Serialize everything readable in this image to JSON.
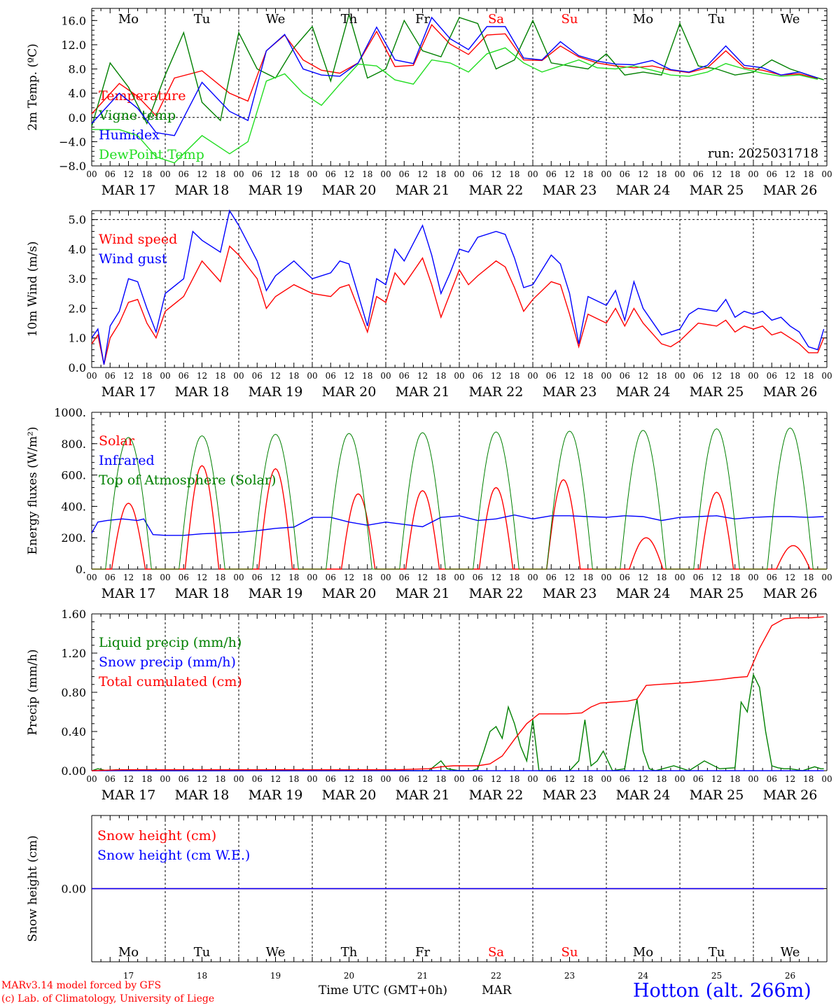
{
  "days": [
    "Mo",
    "Tu",
    "We",
    "Th",
    "Fr",
    "Sa",
    "Su",
    "Mo",
    "Tu",
    "We"
  ],
  "weekend_flags": [
    false,
    false,
    false,
    false,
    false,
    true,
    true,
    false,
    false,
    false
  ],
  "date_labels": [
    "MAR 17",
    "MAR 18",
    "MAR 19",
    "MAR 20",
    "MAR 21",
    "MAR 22",
    "MAR 23",
    "MAR 24",
    "MAR 25",
    "MAR 26"
  ],
  "day_numbers": [
    "17",
    "18",
    "19",
    "20",
    "21",
    "22",
    "23",
    "24",
    "25",
    "26"
  ],
  "hour_ticks": [
    "00",
    "06",
    "12",
    "18"
  ],
  "final_tick": "00",
  "colors": {
    "red": "#ff0000",
    "green": "#008000",
    "blue": "#0000ff",
    "lightgreen": "#22dd22",
    "black": "#000000"
  },
  "chart_data": [
    {
      "type": "line",
      "ylabel": "2m Temp. (ºC)",
      "ylim": [
        -8,
        18
      ],
      "yticks": [
        "16.0",
        "12.0",
        "8.0",
        "4.0",
        "0.0",
        "−4.0",
        "−8.0"
      ],
      "ytick_values": [
        16,
        12,
        8,
        4,
        0,
        -4,
        -8
      ],
      "dashed_y": 0,
      "annotation": "run: 2025031718",
      "series": [
        {
          "name": "Temperature",
          "color": "red",
          "x": [
            0,
            9,
            15,
            21,
            27,
            36,
            45,
            51,
            57,
            63,
            69,
            75,
            81,
            87,
            93,
            99,
            105,
            111,
            117,
            123,
            129,
            135,
            141,
            147,
            153,
            159,
            165,
            171,
            177,
            183,
            189,
            195,
            201,
            207,
            213,
            219,
            225,
            231,
            237
          ],
          "y": [
            0.6,
            5.6,
            3.5,
            0.3,
            6.5,
            7.7,
            4.0,
            2.7,
            11.0,
            13.6,
            9.5,
            7.8,
            7.3,
            9.0,
            14.2,
            8.4,
            8.6,
            15.3,
            12.1,
            10.4,
            13.6,
            13.8,
            9.5,
            9.4,
            11.8,
            10.0,
            9.0,
            8.5,
            8.2,
            8.5,
            7.8,
            7.4,
            8.2,
            11.0,
            8.2,
            7.8,
            7.0,
            7.2,
            6.4
          ]
        },
        {
          "name": "Vigne temp",
          "color": "green",
          "x": [
            0,
            6,
            12,
            18,
            24,
            30,
            36,
            42,
            48,
            54,
            60,
            66,
            72,
            78,
            84,
            90,
            96,
            102,
            108,
            114,
            120,
            126,
            132,
            138,
            144,
            150,
            156,
            162,
            168,
            174,
            180,
            186,
            192,
            198,
            204,
            210,
            216,
            222,
            228,
            234,
            239
          ],
          "y": [
            -1.5,
            9.0,
            5.0,
            -1.0,
            7.0,
            14.0,
            2.5,
            -0.5,
            14.0,
            8.0,
            6.5,
            11.5,
            15.0,
            6.0,
            17.0,
            6.5,
            8.0,
            16.0,
            11.0,
            10.0,
            16.5,
            15.5,
            8.0,
            9.5,
            16.0,
            9.0,
            8.5,
            8.0,
            10.5,
            7.0,
            7.5,
            7.0,
            15.5,
            8.5,
            8.0,
            7.0,
            7.5,
            9.5,
            8.0,
            7.0,
            6.2
          ]
        },
        {
          "name": "Humidex",
          "color": "blue",
          "x": [
            0,
            9,
            15,
            21,
            27,
            36,
            45,
            51,
            57,
            63,
            69,
            75,
            81,
            87,
            93,
            99,
            105,
            111,
            117,
            123,
            129,
            135,
            141,
            147,
            153,
            159,
            165,
            171,
            177,
            183,
            189,
            195,
            201,
            207,
            213,
            219,
            225,
            231,
            237
          ],
          "y": [
            -1.0,
            4.0,
            1.5,
            -2.5,
            -3.0,
            5.8,
            1.0,
            -0.5,
            11.0,
            13.7,
            8.0,
            7.0,
            6.8,
            9.0,
            14.9,
            9.5,
            8.9,
            16.5,
            13.0,
            11.2,
            15.0,
            15.0,
            9.8,
            9.5,
            12.5,
            10.2,
            9.3,
            8.8,
            8.7,
            9.4,
            7.9,
            7.5,
            8.6,
            11.8,
            8.6,
            8.2,
            7.0,
            7.5,
            6.5
          ]
        },
        {
          "name": "DewPoint Temp",
          "color": "lightgreen",
          "x": [
            0,
            9,
            15,
            21,
            27,
            36,
            45,
            51,
            57,
            63,
            69,
            75,
            81,
            87,
            93,
            99,
            105,
            111,
            117,
            123,
            129,
            135,
            141,
            147,
            153,
            159,
            165,
            171,
            177,
            183,
            189,
            195,
            201,
            207,
            213,
            219,
            225,
            231,
            237
          ],
          "y": [
            -2.0,
            -2.0,
            -3.0,
            -6.5,
            -7.5,
            -3.0,
            -6.0,
            -4.0,
            6.0,
            7.2,
            4.0,
            2.0,
            5.5,
            8.8,
            8.5,
            6.2,
            5.5,
            9.5,
            9.0,
            7.5,
            10.5,
            11.5,
            9.0,
            7.5,
            8.5,
            9.5,
            8.2,
            8.0,
            8.5,
            7.8,
            7.0,
            6.8,
            7.5,
            8.9,
            8.0,
            7.3,
            6.8,
            7.0,
            6.3
          ]
        }
      ]
    },
    {
      "type": "line",
      "ylabel": "10m Wind (m/s)",
      "ylim": [
        0,
        5.3
      ],
      "yticks": [
        "5.0",
        "4.0",
        "3.0",
        "2.0",
        "1.0",
        "0.0"
      ],
      "ytick_values": [
        5,
        4,
        3,
        2,
        1,
        0
      ],
      "dashed_y": 5,
      "series": [
        {
          "name": "Wind speed",
          "color": "red",
          "x": [
            0,
            2,
            4,
            6,
            9,
            12,
            15,
            18,
            21,
            24,
            30,
            33,
            36,
            42,
            45,
            48,
            54,
            57,
            60,
            66,
            72,
            78,
            81,
            84,
            90,
            93,
            96,
            99,
            102,
            108,
            111,
            114,
            117,
            120,
            123,
            126,
            132,
            135,
            138,
            141,
            144,
            150,
            153,
            156,
            159,
            162,
            168,
            171,
            174,
            177,
            180,
            186,
            189,
            192,
            195,
            198,
            204,
            207,
            210,
            213,
            216,
            219,
            222,
            225,
            228,
            231,
            234,
            237,
            239
          ],
          "y": [
            0.8,
            1.1,
            0.1,
            1.0,
            1.5,
            2.2,
            2.3,
            1.5,
            1.0,
            1.9,
            2.4,
            3.0,
            3.6,
            2.9,
            4.1,
            3.8,
            3.0,
            2.0,
            2.4,
            2.8,
            2.5,
            2.4,
            2.7,
            2.8,
            1.2,
            2.4,
            2.2,
            3.2,
            2.8,
            3.7,
            2.8,
            1.7,
            2.5,
            3.3,
            2.8,
            3.1,
            3.6,
            3.4,
            2.7,
            1.9,
            2.3,
            2.9,
            2.8,
            1.8,
            0.7,
            1.8,
            1.5,
            2.0,
            1.4,
            2.0,
            1.5,
            0.8,
            0.7,
            0.9,
            1.2,
            1.5,
            1.4,
            1.6,
            1.2,
            1.4,
            1.3,
            1.4,
            1.1,
            1.2,
            1.0,
            0.8,
            0.5,
            0.5,
            1.0
          ]
        },
        {
          "name": "Wind gust",
          "color": "blue",
          "x": [
            0,
            2,
            4,
            6,
            9,
            12,
            15,
            18,
            21,
            24,
            30,
            33,
            36,
            42,
            45,
            48,
            54,
            57,
            60,
            66,
            72,
            78,
            81,
            84,
            90,
            93,
            96,
            99,
            102,
            108,
            111,
            114,
            117,
            120,
            123,
            126,
            132,
            135,
            138,
            141,
            144,
            150,
            153,
            156,
            159,
            162,
            168,
            171,
            174,
            177,
            180,
            186,
            189,
            192,
            195,
            198,
            204,
            207,
            210,
            213,
            216,
            219,
            222,
            225,
            228,
            231,
            234,
            237,
            239
          ],
          "y": [
            1.0,
            1.3,
            0.1,
            1.4,
            1.9,
            3.0,
            2.9,
            2.0,
            1.2,
            2.5,
            3.0,
            4.6,
            4.3,
            3.9,
            5.3,
            4.8,
            3.6,
            2.6,
            3.1,
            3.6,
            3.0,
            3.2,
            3.6,
            3.5,
            1.4,
            3.0,
            2.8,
            4.0,
            3.6,
            4.8,
            3.8,
            2.5,
            3.2,
            4.0,
            3.9,
            4.4,
            4.6,
            4.5,
            3.7,
            2.7,
            2.8,
            3.8,
            3.5,
            2.5,
            0.8,
            2.4,
            2.1,
            2.6,
            1.6,
            2.9,
            2.0,
            1.1,
            1.2,
            1.3,
            1.8,
            2.0,
            1.9,
            2.3,
            1.7,
            1.9,
            1.8,
            1.9,
            1.6,
            1.7,
            1.4,
            1.2,
            0.7,
            0.6,
            1.3
          ]
        }
      ]
    },
    {
      "type": "line",
      "ylabel": "Energy fluxes (W/m²)",
      "ylim": [
        0,
        1000
      ],
      "yticks": [
        "1000.",
        "800.",
        "600.",
        "400.",
        "200.",
        "0."
      ],
      "ytick_values": [
        1000,
        800,
        600,
        400,
        200,
        0
      ],
      "series": [
        {
          "name": "Solar",
          "color": "red",
          "daily_peak_hour": [
            12,
            12,
            12,
            15,
            12,
            12,
            10,
            13,
            12,
            13
          ],
          "daily_peak": [
            420,
            660,
            640,
            480,
            500,
            520,
            570,
            200,
            490,
            150
          ]
        },
        {
          "name": "Infrared",
          "color": "blue",
          "x": [
            0,
            2,
            5,
            10,
            15,
            17,
            20,
            24,
            30,
            36,
            42,
            48,
            54,
            60,
            66,
            72,
            78,
            84,
            90,
            96,
            102,
            108,
            114,
            120,
            126,
            132,
            138,
            144,
            150,
            156,
            162,
            168,
            174,
            180,
            186,
            192,
            198,
            204,
            210,
            216,
            222,
            228,
            234,
            239
          ],
          "y": [
            230,
            300,
            310,
            320,
            310,
            320,
            220,
            215,
            215,
            225,
            230,
            235,
            245,
            260,
            268,
            330,
            330,
            300,
            280,
            300,
            285,
            270,
            330,
            340,
            310,
            320,
            345,
            320,
            340,
            340,
            335,
            330,
            340,
            335,
            310,
            330,
            335,
            340,
            320,
            330,
            335,
            335,
            330,
            335
          ]
        },
        {
          "name": "Top of Atmosphere (Solar)",
          "color": "green",
          "daily_peak": [
            840,
            850,
            860,
            865,
            870,
            875,
            880,
            885,
            895,
            900
          ]
        }
      ]
    },
    {
      "type": "line",
      "ylabel": "Precip (mm/h)",
      "ylim": [
        0,
        1.6
      ],
      "yticks": [
        "1.60",
        "1.20",
        "0.80",
        "0.40",
        "0.00"
      ],
      "ytick_values": [
        1.6,
        1.2,
        0.8,
        0.4,
        0
      ],
      "series": [
        {
          "name": "Liquid precip (mm/h)",
          "color": "green",
          "x": [
            0,
            2,
            5,
            8,
            20,
            100,
            110,
            112,
            114,
            116,
            120,
            124,
            126,
            128,
            130,
            132,
            134,
            136,
            138,
            140,
            142,
            144,
            146,
            150,
            156,
            159,
            161,
            163,
            165,
            167,
            170,
            174,
            176,
            178,
            180,
            182,
            184,
            190,
            195,
            200,
            205,
            210,
            212,
            214,
            216,
            218,
            220,
            222,
            224,
            226,
            228,
            230,
            232,
            234,
            236,
            238,
            239
          ],
          "y": [
            0,
            0.02,
            0,
            0.01,
            0,
            0,
            0,
            0.05,
            0.1,
            0.02,
            0,
            0,
            0.02,
            0.2,
            0.4,
            0.45,
            0.33,
            0.65,
            0.48,
            0.25,
            0.1,
            0.52,
            0,
            0,
            0,
            0.1,
            0.52,
            0.05,
            0.1,
            0.2,
            0,
            0.02,
            0.4,
            0.73,
            0.2,
            0.02,
            0,
            0.05,
            0,
            0.1,
            0.02,
            0.03,
            0.7,
            0.6,
            0.98,
            0.85,
            0.4,
            0.05,
            0.03,
            0.02,
            0.02,
            0.01,
            0,
            0.02,
            0.04,
            0.02,
            0.02
          ]
        },
        {
          "name": "Snow precip (mm/h)",
          "color": "blue",
          "x": [
            0,
            239
          ],
          "y": [
            0,
            0
          ]
        },
        {
          "name": "Total cumulated (cm)",
          "color": "red",
          "x": [
            0,
            10,
            50,
            100,
            110,
            114,
            118,
            126,
            130,
            134,
            138,
            142,
            146,
            150,
            155,
            160,
            163,
            166,
            170,
            175,
            178,
            181,
            185,
            195,
            205,
            210,
            214,
            218,
            222,
            226,
            230,
            235,
            239
          ],
          "y": [
            0.0,
            0.01,
            0.01,
            0.01,
            0.02,
            0.04,
            0.05,
            0.05,
            0.07,
            0.15,
            0.32,
            0.48,
            0.58,
            0.58,
            0.58,
            0.59,
            0.65,
            0.69,
            0.7,
            0.71,
            0.73,
            0.87,
            0.88,
            0.9,
            0.93,
            0.95,
            0.96,
            1.25,
            1.48,
            1.55,
            1.56,
            1.56,
            1.57
          ]
        }
      ]
    },
    {
      "type": "line",
      "ylabel": "Snow height (cm)",
      "ylim": [
        -1,
        1
      ],
      "yticks": [
        "0.00"
      ],
      "ytick_values": [
        0
      ],
      "series": [
        {
          "name": "Snow height (cm)",
          "color": "red",
          "x": [
            0,
            239
          ],
          "y": [
            0,
            0
          ]
        },
        {
          "name": "Snow height (cm W.E.)",
          "color": "blue",
          "x": [
            0,
            239
          ],
          "y": [
            0,
            0
          ]
        }
      ]
    }
  ],
  "xlabel": "Time UTC (GMT+0h)",
  "month": "MAR",
  "footer": {
    "credit_line1": "MARv3.14 model forced by GFS",
    "credit_line2": "(c) Lab. of Climatology, University of Liege",
    "station": "Hotton (alt. 266m)"
  }
}
